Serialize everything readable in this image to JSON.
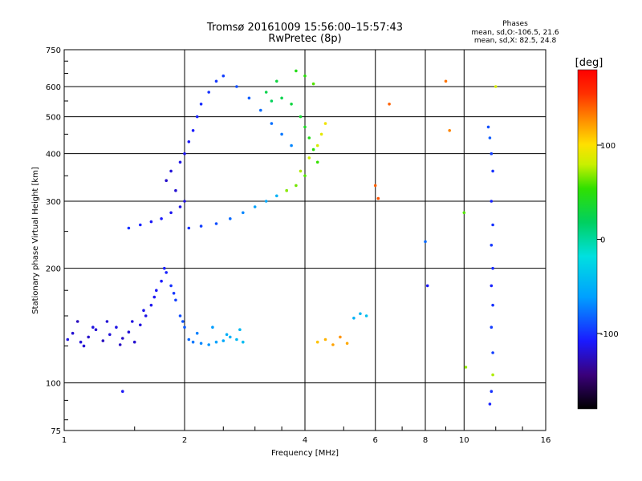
{
  "chart_data": {
    "type": "scatter",
    "title": "Tromsø 20161009 15:56:00–15:57:43",
    "subtitle": "RwPretec (8p)",
    "xlabel": "Frequency [MHz]",
    "ylabel": "Stationary phase Virtual Height [km]",
    "x_scale": "log",
    "y_scale": "log",
    "xlim": [
      1,
      16
    ],
    "ylim": [
      75,
      750
    ],
    "x_ticks": [
      {
        "value": 1,
        "label": "1"
      },
      {
        "value": 2,
        "label": "2"
      },
      {
        "value": 4,
        "label": "4"
      },
      {
        "value": 6,
        "label": "6"
      },
      {
        "value": 8,
        "label": "8"
      },
      {
        "value": 10,
        "label": "10"
      },
      {
        "value": 16,
        "label": "16"
      }
    ],
    "y_ticks": [
      {
        "value": 75,
        "label": "75"
      },
      {
        "value": 100,
        "label": "100"
      },
      {
        "value": 200,
        "label": "200"
      },
      {
        "value": 300,
        "label": "300"
      },
      {
        "value": 400,
        "label": "400"
      },
      {
        "value": 500,
        "label": "500"
      },
      {
        "value": 600,
        "label": "600"
      },
      {
        "value": 750,
        "label": "750"
      }
    ],
    "grid": true,
    "stats": {
      "heading": "Phases",
      "line1": "mean, sd,O:-106.5, 21.6",
      "line2": "mean, sd,X:  82.5, 24.8"
    },
    "colorbar": {
      "label": "[deg]",
      "range": [
        -180,
        180
      ],
      "ticks": [
        {
          "value": 100,
          "label": "100"
        },
        {
          "value": 0,
          "label": "0"
        },
        {
          "value": -100,
          "label": "-100"
        }
      ],
      "colors": [
        "#000000",
        "#3a007a",
        "#1a1aff",
        "#00a0ff",
        "#00e0e0",
        "#00d060",
        "#30e000",
        "#c8f000",
        "#ffe000",
        "#ff9000",
        "#ff3000",
        "#ff0000"
      ]
    },
    "series": [
      {
        "points": [
          [
            1.02,
            130,
            -115
          ],
          [
            1.05,
            135,
            -120
          ],
          [
            1.1,
            128,
            -118
          ],
          [
            1.15,
            132,
            -122
          ],
          [
            1.2,
            138,
            -120
          ],
          [
            1.25,
            129,
            -125
          ],
          [
            1.3,
            134,
            -118
          ],
          [
            1.35,
            140,
            -115
          ],
          [
            1.4,
            131,
            -123
          ],
          [
            1.45,
            136,
            -119
          ],
          [
            1.5,
            128,
            -121
          ],
          [
            1.55,
            142,
            -117
          ],
          [
            1.6,
            150,
            -115
          ],
          [
            1.65,
            160,
            -112
          ],
          [
            1.7,
            175,
            -110
          ],
          [
            1.75,
            185,
            -108
          ],
          [
            1.8,
            195,
            -105
          ],
          [
            1.85,
            180,
            -100
          ],
          [
            1.9,
            165,
            -95
          ],
          [
            1.95,
            150,
            -90
          ],
          [
            2.0,
            140,
            -85
          ],
          [
            2.05,
            130,
            -80
          ],
          [
            2.1,
            128,
            -75
          ],
          [
            2.2,
            127,
            -70
          ],
          [
            2.3,
            126,
            -65
          ],
          [
            2.4,
            128,
            -60
          ],
          [
            2.5,
            129,
            -55
          ],
          [
            2.6,
            132,
            -50
          ],
          [
            2.7,
            130,
            -45
          ],
          [
            2.8,
            128,
            -42
          ],
          [
            1.08,
            145,
            -125
          ],
          [
            1.12,
            125,
            -120
          ],
          [
            1.18,
            140,
            -116
          ],
          [
            1.28,
            145,
            -119
          ],
          [
            1.38,
            126,
            -124
          ],
          [
            1.48,
            145,
            -116
          ],
          [
            1.58,
            155,
            -113
          ],
          [
            1.68,
            168,
            -111
          ],
          [
            1.78,
            200,
            -106
          ],
          [
            1.88,
            172,
            -98
          ],
          [
            1.98,
            145,
            -88
          ],
          [
            2.15,
            135,
            -72
          ],
          [
            2.35,
            140,
            -62
          ],
          [
            2.55,
            134,
            -52
          ],
          [
            2.75,
            138,
            -44
          ]
        ]
      },
      {
        "points": [
          [
            1.45,
            255,
            -100
          ],
          [
            1.55,
            260,
            -105
          ],
          [
            1.65,
            265,
            -110
          ],
          [
            1.75,
            270,
            -108
          ],
          [
            1.85,
            280,
            -112
          ],
          [
            1.95,
            290,
            -115
          ],
          [
            2.0,
            300,
            -118
          ],
          [
            1.9,
            320,
            -120
          ],
          [
            1.8,
            340,
            -122
          ],
          [
            1.85,
            360,
            -118
          ],
          [
            1.95,
            380,
            -115
          ],
          [
            2.0,
            400,
            -112
          ],
          [
            2.05,
            430,
            -110
          ],
          [
            2.1,
            460,
            -108
          ],
          [
            2.15,
            500,
            -105
          ],
          [
            2.2,
            540,
            -102
          ],
          [
            2.3,
            580,
            -100
          ],
          [
            2.4,
            620,
            -98
          ],
          [
            2.5,
            640,
            -95
          ],
          [
            2.7,
            600,
            -90
          ],
          [
            2.9,
            560,
            -85
          ],
          [
            3.1,
            520,
            -80
          ],
          [
            3.3,
            480,
            -78
          ],
          [
            3.5,
            450,
            -75
          ],
          [
            3.7,
            420,
            -70
          ],
          [
            2.05,
            255,
            -100
          ],
          [
            2.2,
            258,
            -95
          ],
          [
            2.4,
            262,
            -90
          ],
          [
            2.6,
            270,
            -80
          ],
          [
            2.8,
            280,
            -70
          ],
          [
            3.0,
            290,
            -60
          ],
          [
            3.2,
            300,
            -55
          ],
          [
            3.4,
            310,
            -50
          ],
          [
            3.6,
            320,
            -45
          ]
        ]
      },
      {
        "points": [
          [
            3.3,
            550,
            20
          ],
          [
            3.5,
            560,
            25
          ],
          [
            3.7,
            540,
            30
          ],
          [
            3.9,
            500,
            35
          ],
          [
            4.0,
            470,
            40
          ],
          [
            4.1,
            440,
            45
          ],
          [
            4.2,
            410,
            50
          ],
          [
            4.3,
            380,
            55
          ],
          [
            4.0,
            350,
            60
          ],
          [
            3.8,
            330,
            65
          ],
          [
            3.6,
            320,
            70
          ],
          [
            3.9,
            360,
            75
          ],
          [
            4.1,
            390,
            80
          ],
          [
            4.3,
            420,
            85
          ],
          [
            4.4,
            450,
            90
          ],
          [
            4.5,
            480,
            95
          ],
          [
            4.2,
            610,
            60
          ],
          [
            4.0,
            640,
            50
          ],
          [
            3.8,
            660,
            45
          ],
          [
            3.4,
            620,
            30
          ],
          [
            3.2,
            580,
            25
          ]
        ]
      },
      {
        "points": [
          [
            4.3,
            128,
            110
          ],
          [
            4.5,
            130,
            115
          ],
          [
            4.7,
            126,
            120
          ],
          [
            4.9,
            132,
            125
          ],
          [
            5.1,
            127,
            118
          ],
          [
            5.3,
            148,
            -50
          ],
          [
            5.5,
            152,
            -45
          ],
          [
            5.7,
            150,
            -40
          ],
          [
            6.5,
            540,
            140
          ],
          [
            9.0,
            620,
            135
          ],
          [
            9.2,
            460,
            130
          ],
          [
            10.0,
            280,
            60
          ],
          [
            10.1,
            110,
            70
          ],
          [
            11.8,
            105,
            75
          ],
          [
            12.0,
            600,
            85
          ],
          [
            11.5,
            470,
            -90
          ],
          [
            11.6,
            440,
            -85
          ],
          [
            11.7,
            400,
            -95
          ],
          [
            11.8,
            360,
            -100
          ],
          [
            11.7,
            300,
            -105
          ],
          [
            11.8,
            260,
            -100
          ],
          [
            11.7,
            230,
            -98
          ],
          [
            11.8,
            200,
            -102
          ],
          [
            11.7,
            180,
            -105
          ],
          [
            11.8,
            160,
            -100
          ],
          [
            11.7,
            140,
            -96
          ],
          [
            11.8,
            120,
            -95
          ],
          [
            11.7,
            95,
            -100
          ],
          [
            11.6,
            88,
            -105
          ],
          [
            8.0,
            235,
            -80
          ],
          [
            8.1,
            180,
            -110
          ],
          [
            6.0,
            330,
            140
          ],
          [
            6.1,
            305,
            145
          ],
          [
            1.4,
            95,
            -110
          ]
        ]
      }
    ]
  }
}
